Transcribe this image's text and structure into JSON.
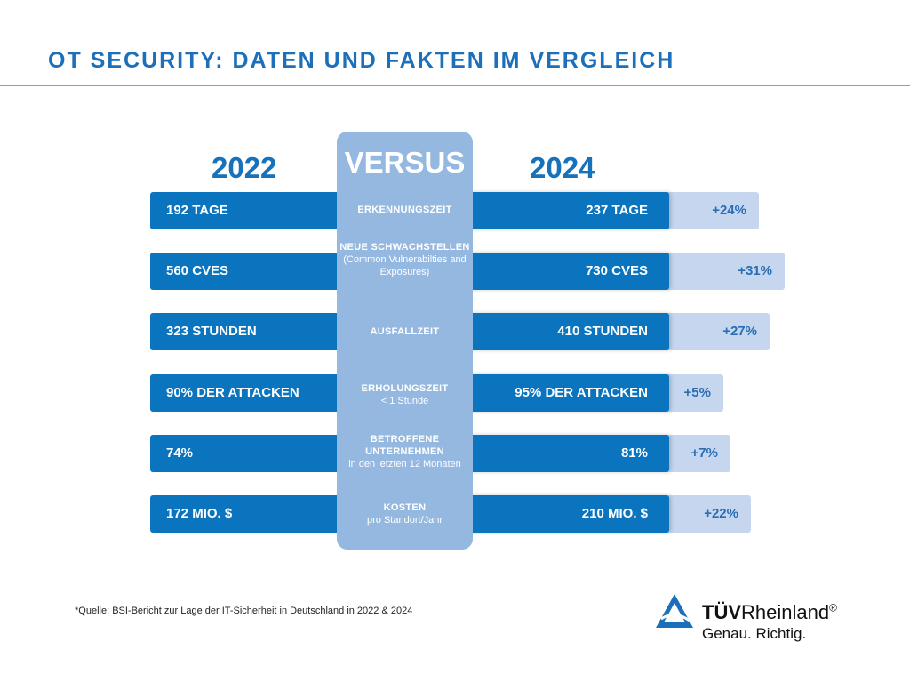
{
  "title": "OT SECURITY: DATEN UND FAKTEN IM VERGLEICH",
  "versus": "VERSUS",
  "colors": {
    "primary": "#0a74bf",
    "panel": "#94b8e0",
    "increase_bar": "#c6d6ee",
    "title": "#1c6fb8"
  },
  "chart_data": {
    "type": "bar",
    "year_left": "2022",
    "year_right": "2024",
    "rows": [
      {
        "category": "ERKENNUNGSZEIT",
        "sub": "",
        "v2022": "192 TAGE",
        "v2024": "237 TAGE",
        "change": "+24%",
        "change_value": 24
      },
      {
        "category": "NEUE SCHWACHSTELLEN",
        "sub": "(Common Vulnerabilties and Exposures)",
        "v2022": "560 CVES",
        "v2024": "730 CVES",
        "change": "+31%",
        "change_value": 31
      },
      {
        "category": "AUSFALLZEIT",
        "sub": "",
        "v2022": "323 STUNDEN",
        "v2024": "410 STUNDEN",
        "change": "+27%",
        "change_value": 27
      },
      {
        "category": "ERHOLUNGSZEIT",
        "sub": "< 1 Stunde",
        "v2022": "90% DER ATTACKEN",
        "v2024": "95% DER ATTACKEN",
        "change": "+5%",
        "change_value": 5
      },
      {
        "category": "BETROFFENE UNTERNEHMEN",
        "sub": "in den letzten 12 Monaten",
        "v2022": "74%",
        "v2024": "81%",
        "change": "+7%",
        "change_value": 7
      },
      {
        "category": "KOSTEN",
        "sub": "pro Standort/Jahr",
        "v2022": "172 MIO. $",
        "v2024": "210 MIO. $",
        "change": "+22%",
        "change_value": 22
      }
    ]
  },
  "source": "*Quelle: BSI-Bericht zur Lage der IT-Sicherheit in Deutschland in 2022 & 2024",
  "logo": {
    "brand_bold": "TÜV",
    "brand": "Rheinland",
    "reg": "®",
    "tagline": "Genau. Richtig."
  }
}
